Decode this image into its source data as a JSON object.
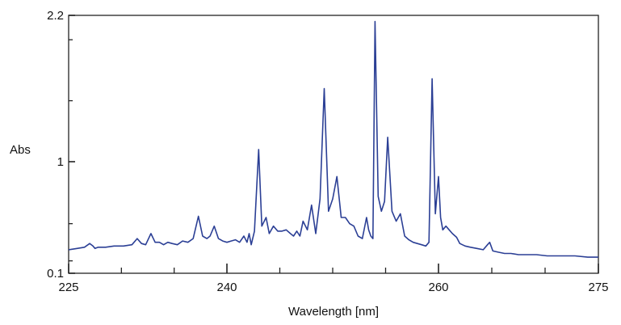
{
  "chart_data": {
    "type": "line",
    "title": "",
    "xlabel": "Wavelength [nm]",
    "ylabel": "Abs",
    "xlim": [
      225,
      275
    ],
    "ylim": [
      0.1,
      2.2
    ],
    "x_ticks": [
      225,
      240,
      260,
      275
    ],
    "x_tick_labels": [
      "225",
      "240",
      "260",
      "275"
    ],
    "y_ticks": [
      0.1,
      1,
      2.2
    ],
    "y_tick_labels": [
      "0.1",
      "1",
      "2.2"
    ],
    "grid": false,
    "line_color": "#2b3f95",
    "series": [
      {
        "x": [
          225.0,
          225.8,
          226.5,
          227.0,
          227.3,
          227.5,
          227.8,
          228.5,
          229.3,
          230.2,
          231.0,
          231.5,
          231.9,
          232.3,
          232.8,
          233.2,
          233.6,
          234.0,
          234.4,
          234.8,
          235.3,
          235.8,
          236.3,
          236.8,
          237.3,
          237.7,
          238.1,
          238.4,
          238.8,
          239.2,
          239.6,
          240.0,
          240.4,
          240.8,
          241.2,
          241.6,
          241.9,
          242.1,
          242.3,
          242.6,
          243.0,
          243.3,
          243.7,
          244.0,
          244.4,
          244.8,
          245.2,
          245.6,
          246.0,
          246.3,
          246.6,
          246.9,
          247.2,
          247.6,
          248.0,
          248.4,
          248.8,
          249.2,
          249.6,
          250.0,
          250.4,
          250.8,
          251.2,
          251.6,
          252.0,
          252.4,
          252.8,
          253.2,
          253.4,
          253.6,
          253.8,
          254.0,
          254.3,
          254.6,
          254.9,
          255.2,
          255.6,
          256.0,
          256.4,
          256.8,
          257.2,
          257.6,
          258.0,
          258.4,
          258.8,
          259.1,
          259.4,
          259.7,
          260.0,
          260.2,
          260.4,
          260.7,
          261.0,
          261.3,
          261.7,
          262.0,
          262.5,
          263.0,
          263.6,
          264.2,
          264.6,
          264.8,
          265.1,
          265.6,
          266.2,
          266.8,
          267.5,
          268.3,
          269.2,
          270.2,
          271.5,
          272.8,
          274.0,
          275.0
        ],
        "values": [
          0.29,
          0.3,
          0.31,
          0.34,
          0.32,
          0.3,
          0.31,
          0.31,
          0.32,
          0.32,
          0.33,
          0.38,
          0.34,
          0.33,
          0.42,
          0.35,
          0.35,
          0.33,
          0.35,
          0.34,
          0.33,
          0.36,
          0.35,
          0.38,
          0.56,
          0.4,
          0.38,
          0.4,
          0.48,
          0.38,
          0.36,
          0.35,
          0.36,
          0.37,
          0.35,
          0.4,
          0.35,
          0.42,
          0.33,
          0.44,
          1.1,
          0.48,
          0.55,
          0.42,
          0.48,
          0.44,
          0.44,
          0.45,
          0.42,
          0.4,
          0.44,
          0.4,
          0.52,
          0.45,
          0.65,
          0.42,
          0.7,
          1.6,
          0.6,
          0.7,
          0.88,
          0.55,
          0.55,
          0.5,
          0.48,
          0.4,
          0.38,
          0.55,
          0.45,
          0.4,
          0.38,
          2.15,
          0.72,
          0.6,
          0.68,
          1.2,
          0.6,
          0.52,
          0.58,
          0.4,
          0.37,
          0.35,
          0.34,
          0.33,
          0.32,
          0.35,
          1.68,
          0.58,
          0.88,
          0.55,
          0.45,
          0.48,
          0.45,
          0.42,
          0.39,
          0.34,
          0.32,
          0.31,
          0.3,
          0.29,
          0.33,
          0.35,
          0.28,
          0.27,
          0.26,
          0.26,
          0.25,
          0.25,
          0.25,
          0.24,
          0.24,
          0.24,
          0.23,
          0.23
        ]
      }
    ]
  }
}
